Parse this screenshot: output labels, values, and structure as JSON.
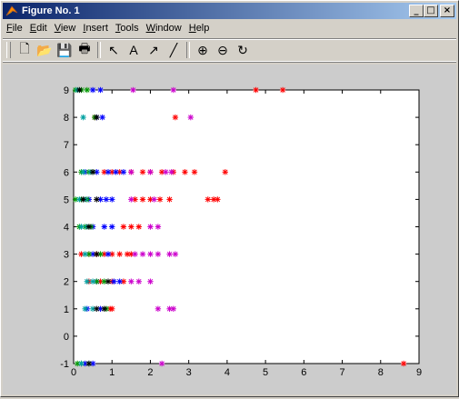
{
  "window": {
    "title": "Figure No. 1",
    "controls": {
      "minimize": "_",
      "maximize": "□",
      "close": "×"
    }
  },
  "menu": [
    {
      "label": "File",
      "ul": "F",
      "rest": "ile"
    },
    {
      "label": "Edit",
      "ul": "E",
      "rest": "dit"
    },
    {
      "label": "View",
      "ul": "V",
      "rest": "iew"
    },
    {
      "label": "Insert",
      "ul": "I",
      "rest": "nsert"
    },
    {
      "label": "Tools",
      "ul": "T",
      "rest": "ools"
    },
    {
      "label": "Window",
      "ul": "W",
      "rest": "indow"
    },
    {
      "label": "Help",
      "ul": "H",
      "rest": "elp"
    }
  ],
  "toolbar": {
    "buttons": [
      {
        "name": "new-figure-icon",
        "glyph": "🗋"
      },
      {
        "name": "open-file-icon",
        "glyph": "📂"
      },
      {
        "name": "save-icon",
        "glyph": "💾"
      },
      {
        "name": "print-icon",
        "glyph": "🖶"
      },
      {
        "sep": true
      },
      {
        "name": "edit-plot-arrow-icon",
        "glyph": "↖"
      },
      {
        "name": "insert-text-icon",
        "glyph": "A"
      },
      {
        "name": "insert-arrow-icon",
        "glyph": "↗"
      },
      {
        "name": "insert-line-icon",
        "glyph": "╱"
      },
      {
        "sep": true
      },
      {
        "name": "zoom-in-icon",
        "glyph": "⊕"
      },
      {
        "name": "zoom-out-icon",
        "glyph": "⊖"
      },
      {
        "name": "rotate-3d-icon",
        "glyph": "↻"
      }
    ]
  },
  "colors": {
    "title_gradient_start": "#0a246a",
    "title_gradient_end": "#a6caf0",
    "figure_bg": "#cccccc",
    "axes_bg": "#ffffff"
  },
  "chart_data": {
    "type": "scatter",
    "marker": "*",
    "xlim": [
      0,
      9
    ],
    "ylim": [
      -1,
      9
    ],
    "xticks": [
      0,
      1,
      2,
      3,
      4,
      5,
      6,
      7,
      8,
      9
    ],
    "yticks": [
      -1,
      0,
      1,
      2,
      3,
      4,
      5,
      6,
      7,
      8,
      9
    ],
    "grid": false,
    "series": [
      {
        "color": "#ff0000",
        "points": [
          [
            4.75,
            9
          ],
          [
            5.45,
            9
          ],
          [
            2.65,
            8
          ],
          [
            0.55,
            8
          ],
          [
            0.8,
            6
          ],
          [
            1.0,
            6
          ],
          [
            1.2,
            6
          ],
          [
            1.5,
            6
          ],
          [
            1.8,
            6
          ],
          [
            2.0,
            6
          ],
          [
            2.3,
            6
          ],
          [
            2.6,
            6
          ],
          [
            2.9,
            6
          ],
          [
            3.15,
            6
          ],
          [
            3.95,
            6
          ],
          [
            1.6,
            5
          ],
          [
            1.8,
            5
          ],
          [
            2.0,
            5
          ],
          [
            2.25,
            5
          ],
          [
            2.5,
            5
          ],
          [
            3.5,
            5
          ],
          [
            3.65,
            5
          ],
          [
            3.75,
            5
          ],
          [
            1.3,
            4
          ],
          [
            1.5,
            4
          ],
          [
            1.7,
            4
          ],
          [
            0.2,
            3
          ],
          [
            0.4,
            3
          ],
          [
            0.6,
            3
          ],
          [
            0.8,
            3
          ],
          [
            1.0,
            3
          ],
          [
            1.2,
            3
          ],
          [
            1.4,
            3
          ],
          [
            1.5,
            3
          ],
          [
            0.4,
            2
          ],
          [
            0.7,
            2
          ],
          [
            1.0,
            2
          ],
          [
            1.3,
            2
          ],
          [
            0.95,
            1
          ],
          [
            1.0,
            1
          ],
          [
            8.6,
            -1
          ]
        ]
      },
      {
        "color": "#cc00cc",
        "points": [
          [
            1.55,
            9
          ],
          [
            2.6,
            9
          ],
          [
            3.05,
            8
          ],
          [
            1.5,
            6
          ],
          [
            2.0,
            6
          ],
          [
            2.4,
            6
          ],
          [
            2.55,
            6
          ],
          [
            1.5,
            5
          ],
          [
            2.1,
            5
          ],
          [
            2.0,
            4
          ],
          [
            2.2,
            4
          ],
          [
            1.6,
            3
          ],
          [
            1.8,
            3
          ],
          [
            2.0,
            3
          ],
          [
            2.2,
            3
          ],
          [
            2.5,
            3
          ],
          [
            2.65,
            3
          ],
          [
            1.5,
            2
          ],
          [
            1.7,
            2
          ],
          [
            2.0,
            2
          ],
          [
            2.2,
            1
          ],
          [
            2.5,
            1
          ],
          [
            2.6,
            1
          ],
          [
            2.3,
            -1
          ]
        ]
      },
      {
        "color": "#0000ff",
        "points": [
          [
            0.5,
            9
          ],
          [
            0.7,
            9
          ],
          [
            0.6,
            8
          ],
          [
            0.75,
            8
          ],
          [
            0.3,
            6
          ],
          [
            0.6,
            6
          ],
          [
            0.9,
            6
          ],
          [
            1.1,
            6
          ],
          [
            1.3,
            6
          ],
          [
            0.4,
            5
          ],
          [
            0.7,
            5
          ],
          [
            0.85,
            5
          ],
          [
            1.0,
            5
          ],
          [
            0.5,
            4
          ],
          [
            0.8,
            4
          ],
          [
            1.0,
            4
          ],
          [
            0.5,
            3
          ],
          [
            0.9,
            3
          ],
          [
            0.6,
            2
          ],
          [
            1.05,
            2
          ],
          [
            1.2,
            2
          ],
          [
            0.35,
            1
          ],
          [
            0.7,
            1
          ],
          [
            0.3,
            -1
          ],
          [
            0.5,
            -1
          ]
        ]
      },
      {
        "color": "#009900",
        "points": [
          [
            0.05,
            9
          ],
          [
            0.2,
            9
          ],
          [
            0.35,
            9
          ],
          [
            0.55,
            8
          ],
          [
            0.2,
            6
          ],
          [
            0.4,
            6
          ],
          [
            0.5,
            6
          ],
          [
            0.05,
            5
          ],
          [
            0.2,
            5
          ],
          [
            0.35,
            5
          ],
          [
            0.15,
            4
          ],
          [
            0.3,
            4
          ],
          [
            0.45,
            4
          ],
          [
            0.4,
            3
          ],
          [
            0.7,
            3
          ],
          [
            0.6,
            2
          ],
          [
            0.8,
            2
          ],
          [
            0.85,
            1
          ],
          [
            0.1,
            -1
          ],
          [
            0.2,
            -1
          ]
        ]
      },
      {
        "color": "#00a0a0",
        "points": [
          [
            0.1,
            9
          ],
          [
            0.25,
            8
          ],
          [
            0.25,
            6
          ],
          [
            0.45,
            6
          ],
          [
            0.15,
            5
          ],
          [
            0.3,
            5
          ],
          [
            0.2,
            4
          ],
          [
            0.35,
            4
          ],
          [
            0.3,
            3
          ],
          [
            0.35,
            2
          ],
          [
            0.5,
            2
          ],
          [
            0.3,
            1
          ],
          [
            0.5,
            1
          ],
          [
            0.2,
            -1
          ],
          [
            0.4,
            -1
          ]
        ]
      },
      {
        "color": "#000000",
        "points": [
          [
            0.15,
            9
          ],
          [
            0.6,
            8
          ],
          [
            0.5,
            6
          ],
          [
            0.25,
            5
          ],
          [
            0.6,
            5
          ],
          [
            0.4,
            4
          ],
          [
            0.6,
            3
          ],
          [
            0.9,
            2
          ],
          [
            0.6,
            1
          ],
          [
            0.8,
            1
          ],
          [
            0.4,
            -1
          ]
        ]
      }
    ]
  }
}
